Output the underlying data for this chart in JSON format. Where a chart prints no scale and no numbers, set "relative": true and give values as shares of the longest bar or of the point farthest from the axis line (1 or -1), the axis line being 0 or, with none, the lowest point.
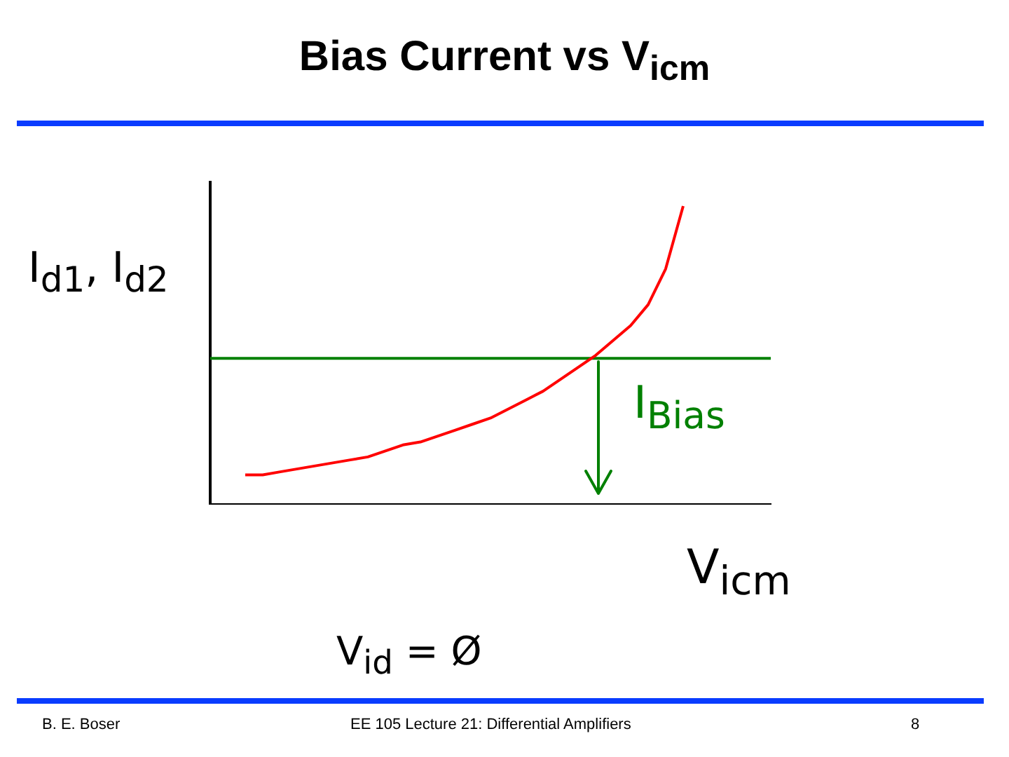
{
  "chart_data": {
    "type": "line",
    "title": "Bias Current vs V$_{icm}$",
    "xlabel": "V$_{icm}$",
    "ylabel": "I$_{d1}$, I$_{d2}$",
    "relative": true,
    "legend": false,
    "grid": false,
    "categories": [
      null,
      null,
      null,
      null,
      null,
      null,
      null,
      null,
      null,
      null,
      null,
      null,
      null,
      null,
      null,
      null,
      null,
      null,
      null,
      null,
      null,
      null,
      null,
      null,
      null,
      null,
      null,
      null,
      null,
      null,
      null,
      null,
      null
    ],
    "series": [
      {
        "color": "#ff0000",
        "values": [
          null,
          null,
          0.1,
          0.1,
          0.11,
          0.12,
          0.13,
          0.14,
          0.15,
          0.16,
          0.18,
          0.2,
          0.21,
          0.23,
          0.25,
          0.27,
          0.29,
          0.32,
          0.35,
          0.38,
          0.42,
          0.46,
          0.5,
          0.55,
          0.6,
          0.67,
          0.79,
          1.0,
          null,
          null,
          null,
          null,
          null
        ]
      },
      {
        "name": "I$_{Bias}$",
        "color": "#008000",
        "values": [
          0.49,
          0.49,
          0.49,
          0.49,
          0.49,
          0.49,
          0.49,
          0.49,
          0.49,
          0.49,
          0.49,
          0.49,
          0.49,
          0.49,
          0.49,
          0.49,
          0.49,
          0.49,
          0.49,
          0.49,
          0.49,
          0.49,
          0.49,
          0.49,
          0.49,
          0.49,
          0.49,
          0.49,
          0.49,
          0.49,
          0.49,
          0.49,
          0.49
        ]
      }
    ],
    "annotations": [
      "V$_{id}$ = Ø",
      "B. E. Boser",
      "EE 105 Lecture 21: Differential Amplifiers",
      "8"
    ]
  }
}
